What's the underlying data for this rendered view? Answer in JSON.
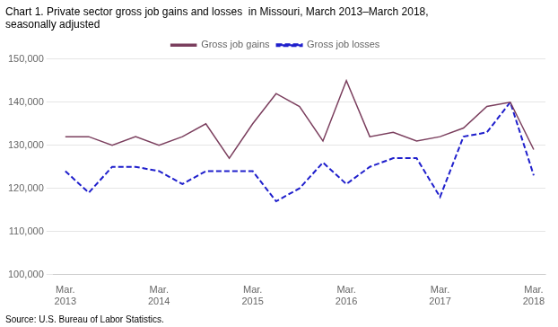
{
  "chart_data": {
    "type": "line",
    "title": "Chart 1. Private sector gross job gains and losses  in Missouri, March 2013–March 2018,\nseasonally adjusted",
    "source": "Source: U.S. Bureau of Labor Statistics.",
    "categories": [
      "Mar.\n2013",
      null,
      null,
      null,
      "Mar.\n2014",
      null,
      null,
      null,
      "Mar.\n2015",
      null,
      null,
      null,
      "Mar.\n2016",
      null,
      null,
      null,
      "Mar.\n2017",
      null,
      null,
      null,
      "Mar.\n2018"
    ],
    "series": [
      {
        "name": "Gross job gains",
        "color": "#7B3F5E",
        "line_style": "solid",
        "values": [
          132000,
          132000,
          130000,
          132000,
          130000,
          132000,
          135000,
          127000,
          135000,
          142000,
          139000,
          131000,
          145000,
          132000,
          133000,
          131000,
          132000,
          134000,
          139000,
          140000,
          129000
        ]
      },
      {
        "name": "Gross job losses",
        "color": "#1F1FCC",
        "line_style": "dashed",
        "values": [
          124000,
          119000,
          125000,
          125000,
          124000,
          121000,
          124000,
          124000,
          124000,
          117000,
          120000,
          126000,
          121000,
          125000,
          127000,
          127000,
          118000,
          132000,
          133000,
          140000,
          123000
        ]
      }
    ],
    "ylim": [
      100000,
      150000
    ],
    "yticks": [
      {
        "value": 100000,
        "label": "100,000"
      },
      {
        "value": 110000,
        "label": "110,000"
      },
      {
        "value": 120000,
        "label": "120,000"
      },
      {
        "value": 130000,
        "label": "130,000"
      },
      {
        "value": 140000,
        "label": "140,000"
      },
      {
        "value": 150000,
        "label": "150,000"
      }
    ],
    "grid": "y",
    "legend": "top"
  }
}
